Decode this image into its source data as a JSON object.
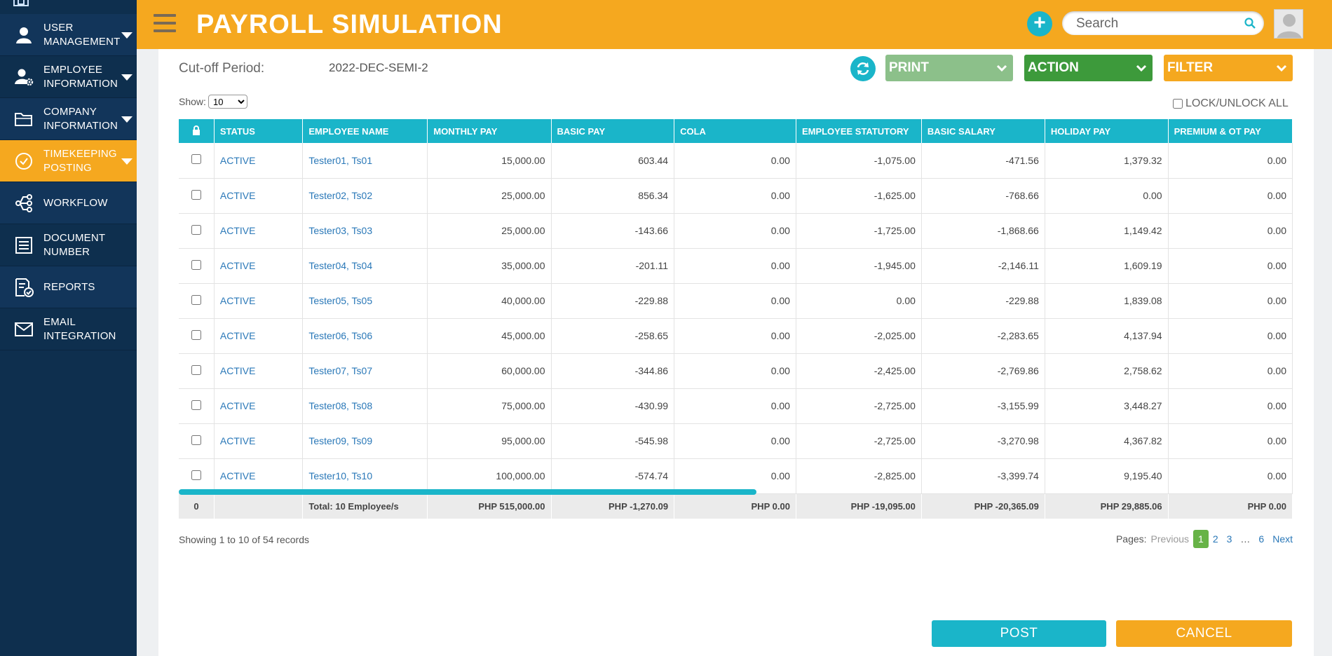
{
  "sidebar": {
    "items": [
      {
        "label": "USER MANAGEMENT",
        "icon": "user-icon",
        "caret": true
      },
      {
        "label": "EMPLOYEE INFORMATION",
        "icon": "user-gear-icon",
        "caret": true
      },
      {
        "label": "COMPANY INFORMATION",
        "icon": "folder-icon",
        "caret": true
      },
      {
        "label": "TIMEKEEPING POSTING",
        "icon": "check-circle-icon",
        "caret": true,
        "active": true
      },
      {
        "label": "WORKFLOW",
        "icon": "workflow-icon",
        "caret": false
      },
      {
        "label": "DOCUMENT NUMBER",
        "icon": "document-list-icon",
        "caret": false
      },
      {
        "label": "REPORTS",
        "icon": "report-icon",
        "caret": false
      },
      {
        "label": "EMAIL INTEGRATION",
        "icon": "envelope-icon",
        "caret": false
      }
    ]
  },
  "header": {
    "title": "PAYROLL SIMULATION",
    "search_placeholder": "Search"
  },
  "toolbar": {
    "cutoff_label": "Cut-off Period:",
    "cutoff_value": "2022-DEC-SEMI-2",
    "print_label": "PRINT",
    "action_label": "ACTION",
    "filter_label": "FILTER",
    "show_label": "Show:",
    "show_value": "10",
    "lock_all_label": "LOCK/UNLOCK ALL"
  },
  "table": {
    "columns": [
      "STATUS",
      "EMPLOYEE NAME",
      "MONTHLY PAY",
      "BASIC PAY",
      "COLA",
      "EMPLOYEE STATUTORY",
      "BASIC SALARY",
      "HOLIDAY PAY",
      "PREMIUM & OT PAY"
    ],
    "rows": [
      {
        "status": "ACTIVE",
        "name": "Tester01, Ts01",
        "monthly": "15,000.00",
        "basic": "603.44",
        "cola": "0.00",
        "statutory": "-1,075.00",
        "salary": "-471.56",
        "holiday": "1,379.32",
        "premium": "0.00"
      },
      {
        "status": "ACTIVE",
        "name": "Tester02, Ts02",
        "monthly": "25,000.00",
        "basic": "856.34",
        "cola": "0.00",
        "statutory": "-1,625.00",
        "salary": "-768.66",
        "holiday": "0.00",
        "premium": "0.00"
      },
      {
        "status": "ACTIVE",
        "name": "Tester03, Ts03",
        "monthly": "25,000.00",
        "basic": "-143.66",
        "cola": "0.00",
        "statutory": "-1,725.00",
        "salary": "-1,868.66",
        "holiday": "1,149.42",
        "premium": "0.00"
      },
      {
        "status": "ACTIVE",
        "name": "Tester04, Ts04",
        "monthly": "35,000.00",
        "basic": "-201.11",
        "cola": "0.00",
        "statutory": "-1,945.00",
        "salary": "-2,146.11",
        "holiday": "1,609.19",
        "premium": "0.00"
      },
      {
        "status": "ACTIVE",
        "name": "Tester05, Ts05",
        "monthly": "40,000.00",
        "basic": "-229.88",
        "cola": "0.00",
        "statutory": "0.00",
        "salary": "-229.88",
        "holiday": "1,839.08",
        "premium": "0.00"
      },
      {
        "status": "ACTIVE",
        "name": "Tester06, Ts06",
        "monthly": "45,000.00",
        "basic": "-258.65",
        "cola": "0.00",
        "statutory": "-2,025.00",
        "salary": "-2,283.65",
        "holiday": "4,137.94",
        "premium": "0.00"
      },
      {
        "status": "ACTIVE",
        "name": "Tester07, Ts07",
        "monthly": "60,000.00",
        "basic": "-344.86",
        "cola": "0.00",
        "statutory": "-2,425.00",
        "salary": "-2,769.86",
        "holiday": "2,758.62",
        "premium": "0.00"
      },
      {
        "status": "ACTIVE",
        "name": "Tester08, Ts08",
        "monthly": "75,000.00",
        "basic": "-430.99",
        "cola": "0.00",
        "statutory": "-2,725.00",
        "salary": "-3,155.99",
        "holiday": "3,448.27",
        "premium": "0.00"
      },
      {
        "status": "ACTIVE",
        "name": "Tester09, Ts09",
        "monthly": "95,000.00",
        "basic": "-545.98",
        "cola": "0.00",
        "statutory": "-2,725.00",
        "salary": "-3,270.98",
        "holiday": "4,367.82",
        "premium": "0.00"
      },
      {
        "status": "ACTIVE",
        "name": "Tester10, Ts10",
        "monthly": "100,000.00",
        "basic": "-574.74",
        "cola": "0.00",
        "statutory": "-2,825.00",
        "salary": "-3,399.74",
        "holiday": "9,195.40",
        "premium": "0.00"
      }
    ],
    "footer": {
      "count": "0",
      "total_label": "Total: 10 Employee/s",
      "monthly": "PHP 515,000.00",
      "basic": "PHP -1,270.09",
      "cola": "PHP 0.00",
      "statutory": "PHP -19,095.00",
      "salary": "PHP -20,365.09",
      "holiday": "PHP 29,885.06",
      "premium": "PHP 0.00"
    }
  },
  "pagination": {
    "showing": "Showing 1 to 10 of 54 records",
    "pages_label": "Pages:",
    "previous": "Previous",
    "pages": [
      "1",
      "2",
      "3"
    ],
    "ellipsis": "…",
    "last": "6",
    "next": "Next",
    "current": "1"
  },
  "actions": {
    "post_label": "POST",
    "cancel_label": "CANCEL"
  },
  "colors": {
    "accent_orange": "#f5a81f",
    "accent_teal": "#1ab5c9",
    "sidebar_navy": "#0e2f4e",
    "action_green": "#3d9a3b",
    "print_green": "#8cc08a"
  }
}
